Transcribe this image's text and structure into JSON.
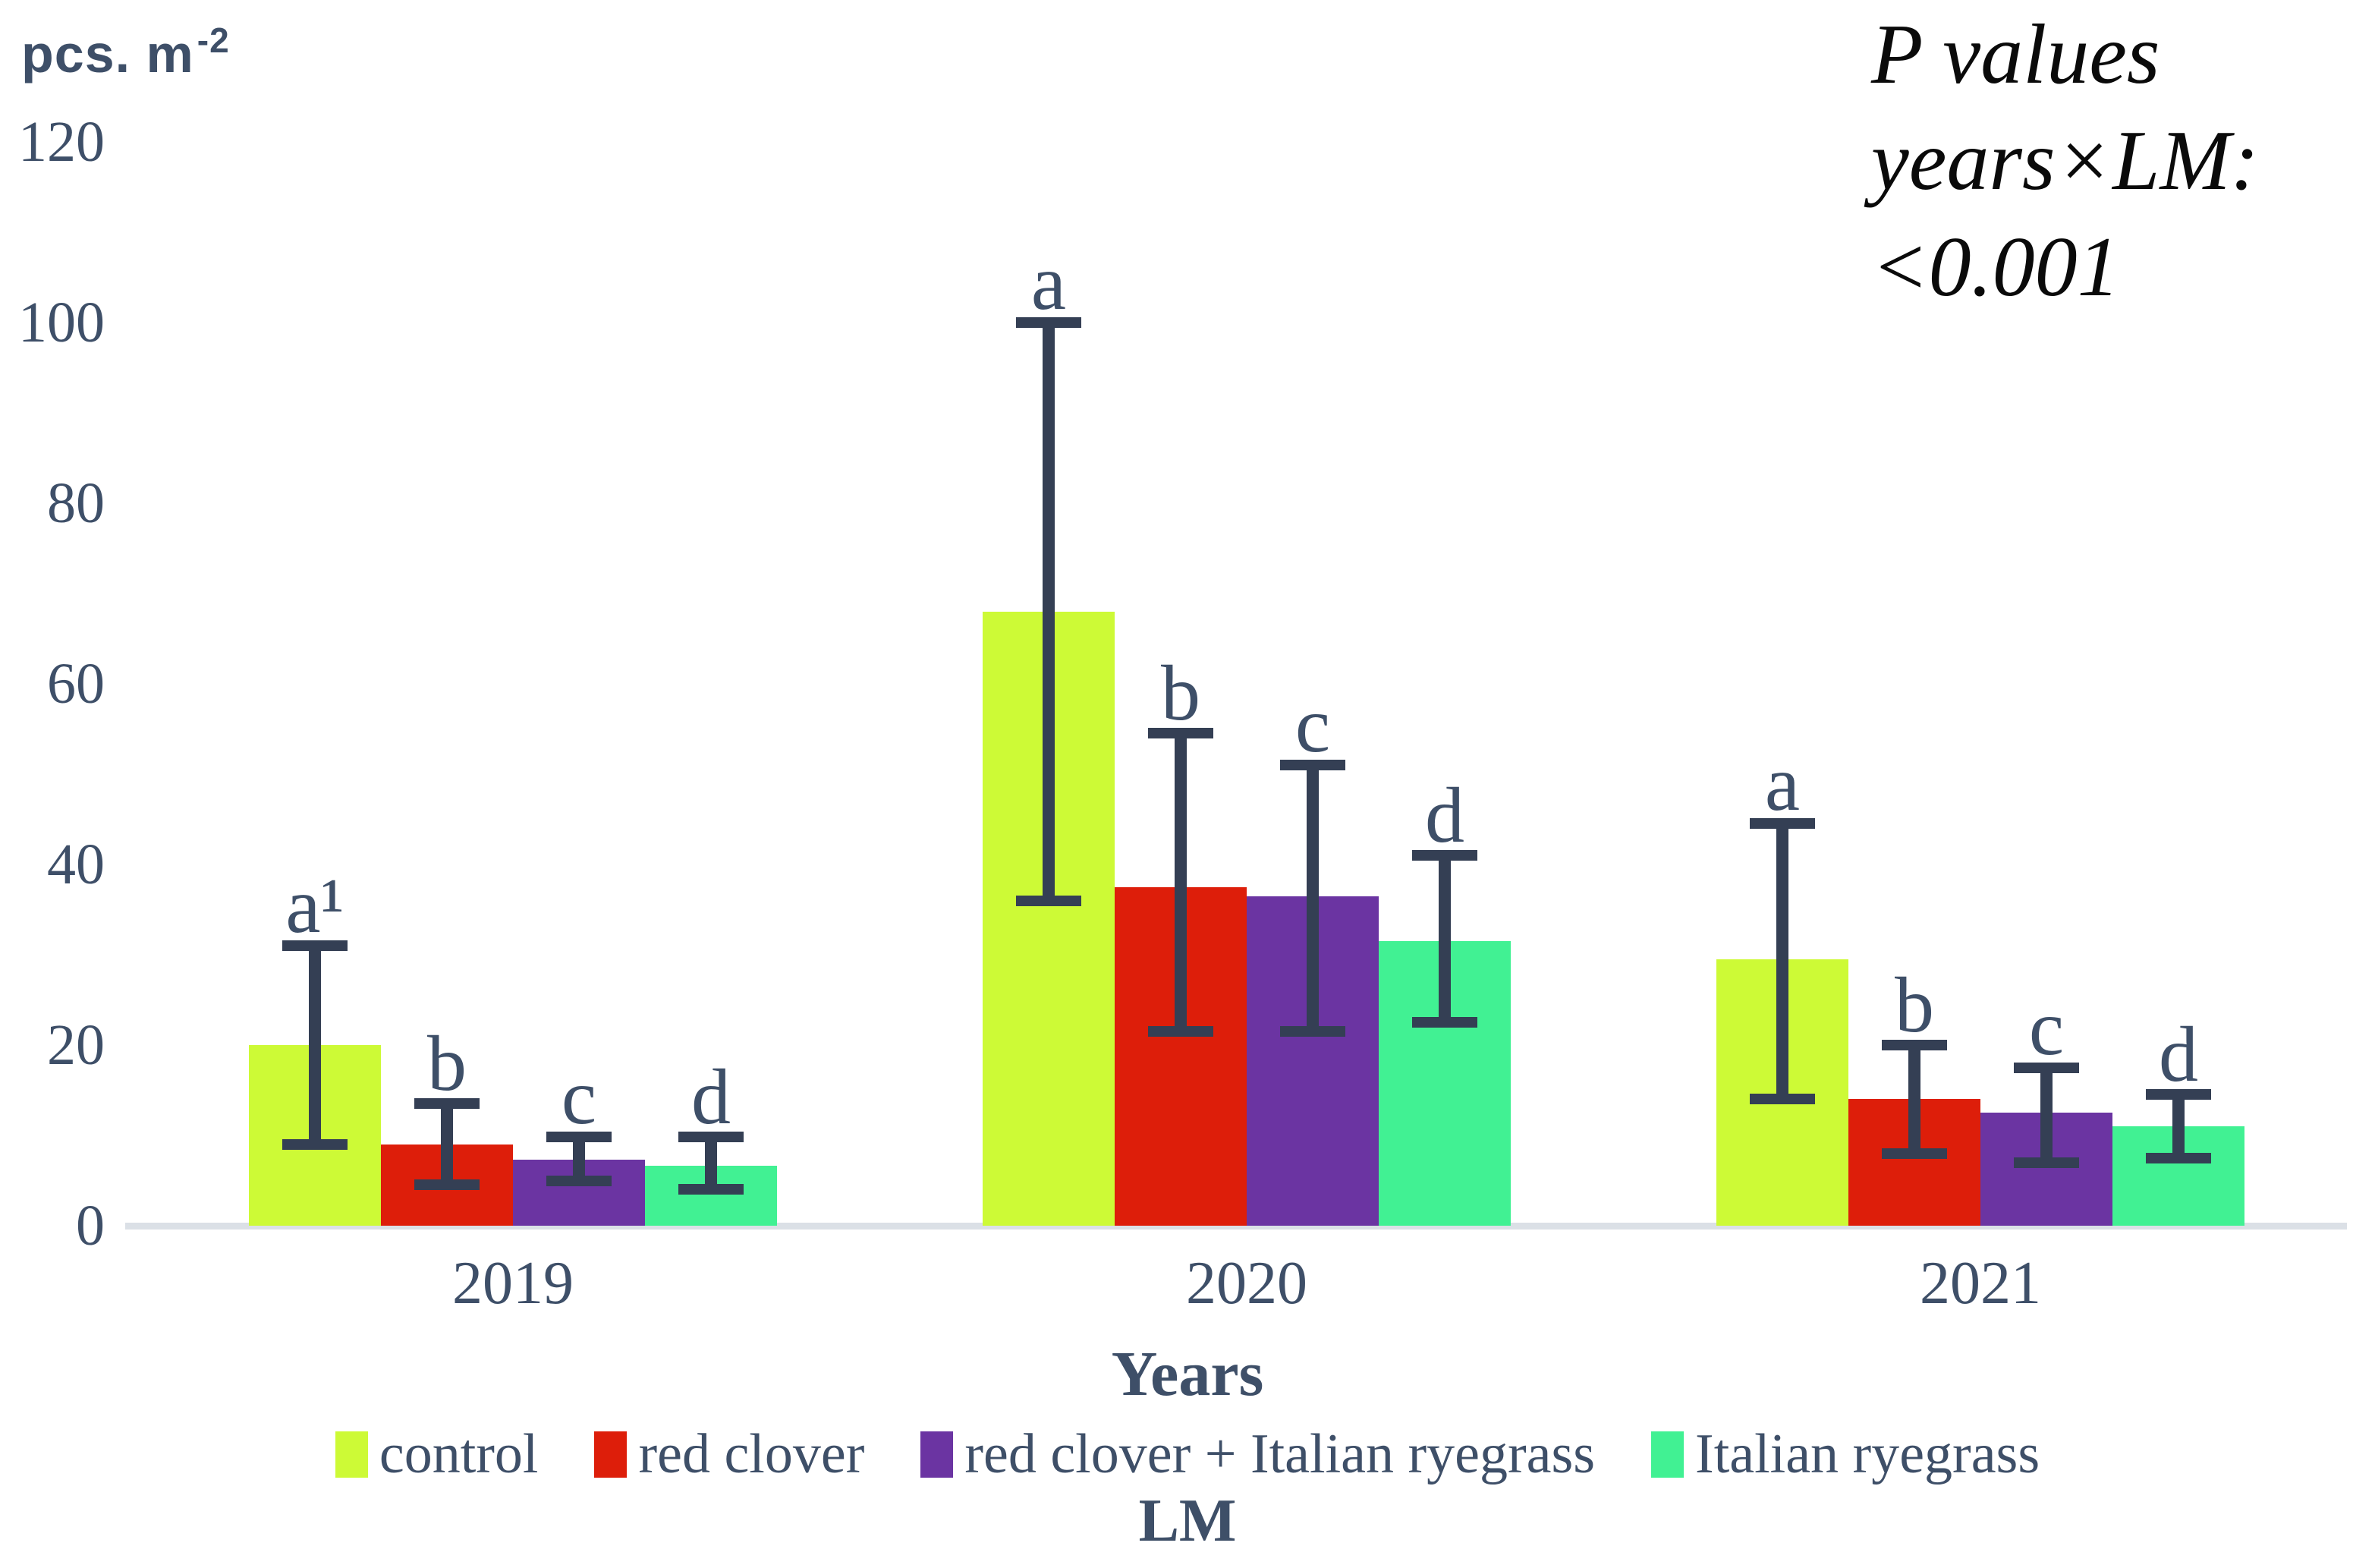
{
  "chart_data": {
    "type": "bar",
    "title": "",
    "unit_label": {
      "base": "pcs. m",
      "exponent": "-2"
    },
    "xlabel": "Years",
    "legend_title": "LM",
    "categories": [
      "2019",
      "2020",
      "2021"
    ],
    "yticks": [
      0,
      20,
      40,
      60,
      80,
      100,
      120
    ],
    "ylim": [
      0,
      120
    ],
    "grid": "off",
    "legend_position": "bottom",
    "series": [
      {
        "name": "control",
        "color": "#CDFA36",
        "values": [
          20,
          68,
          29.5
        ],
        "err_low": [
          9,
          36,
          14
        ],
        "err_high": [
          31,
          100,
          44.5
        ],
        "sig_letters": [
          "a¹",
          "a",
          "a"
        ]
      },
      {
        "name": "red clover",
        "color": "#DD1E0A",
        "values": [
          9,
          37.5,
          14
        ],
        "err_low": [
          4.5,
          21.5,
          8
        ],
        "err_high": [
          13.5,
          54.5,
          20
        ],
        "sig_letters": [
          "b",
          "b",
          "b"
        ]
      },
      {
        "name": "red clover + Italian ryegrass",
        "color": "#6B34A2",
        "values": [
          7.3,
          36.5,
          12.5
        ],
        "err_low": [
          5,
          21.5,
          7
        ],
        "err_high": [
          9.8,
          51,
          17.5
        ],
        "sig_letters": [
          "c",
          "c",
          "c"
        ]
      },
      {
        "name": "Italian ryegrass",
        "color": "#41F193",
        "values": [
          6.6,
          31.5,
          11
        ],
        "err_low": [
          4,
          22.5,
          7.5
        ],
        "err_high": [
          9.8,
          41,
          14.5
        ],
        "sig_letters": [
          "d",
          "d",
          "d"
        ]
      }
    ],
    "colors": {
      "text": "#3E4F68",
      "error_bar": "#343F54",
      "axis_line": "#DBE0E6",
      "annotation": "#0A0A0A"
    }
  },
  "annotation": {
    "lines": [
      "P values",
      "years×LM:",
      "<0.001"
    ]
  }
}
